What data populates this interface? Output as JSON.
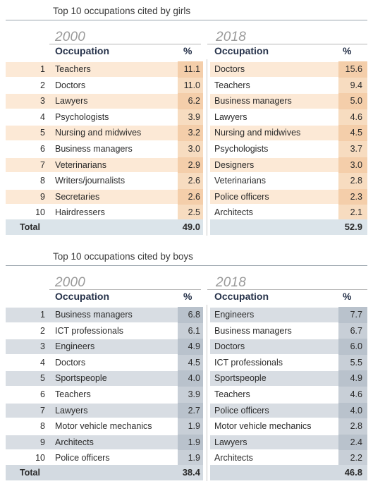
{
  "girls": {
    "title": "Top 10 occupations cited by girls",
    "left": {
      "year": "2000",
      "occupation_header": "Occupation",
      "pct_header": "%"
    },
    "right": {
      "year": "2018",
      "occupation_header": "Occupation",
      "pct_header": "%"
    },
    "rows": [
      {
        "rank": "1",
        "occ2000": "Teachers",
        "pct2000": "11.1",
        "occ2018": "Doctors",
        "pct2018": "15.6"
      },
      {
        "rank": "2",
        "occ2000": "Doctors",
        "pct2000": "11.0",
        "occ2018": "Teachers",
        "pct2018": "9.4"
      },
      {
        "rank": "3",
        "occ2000": "Lawyers",
        "pct2000": "6.2",
        "occ2018": "Business managers",
        "pct2018": "5.0"
      },
      {
        "rank": "4",
        "occ2000": "Psychologists",
        "pct2000": "3.9",
        "occ2018": "Lawyers",
        "pct2018": "4.6"
      },
      {
        "rank": "5",
        "occ2000": "Nursing and midwives",
        "pct2000": "3.2",
        "occ2018": "Nursing and midwives",
        "pct2018": "4.5"
      },
      {
        "rank": "6",
        "occ2000": "Business managers",
        "pct2000": "3.0",
        "occ2018": "Psychologists",
        "pct2018": "3.7"
      },
      {
        "rank": "7",
        "occ2000": "Veterinarians",
        "pct2000": "2.9",
        "occ2018": "Designers",
        "pct2018": "3.0"
      },
      {
        "rank": "8",
        "occ2000": "Writers/journalists",
        "pct2000": "2.6",
        "occ2018": "Veterinarians",
        "pct2018": "2.8"
      },
      {
        "rank": "9",
        "occ2000": "Secretaries",
        "pct2000": "2.6",
        "occ2018": "Police officers",
        "pct2018": "2.3"
      },
      {
        "rank": "10",
        "occ2000": "Hairdressers",
        "pct2000": "2.5",
        "occ2018": "Architects",
        "pct2018": "2.1"
      }
    ],
    "total": {
      "label": "Total",
      "pct2000": "49.0",
      "pct2018": "52.9"
    }
  },
  "boys": {
    "title": "Top 10 occupations cited by boys",
    "left": {
      "year": "2000",
      "occupation_header": "Occupation",
      "pct_header": "%"
    },
    "right": {
      "year": "2018",
      "occupation_header": "Occupation",
      "pct_header": "%"
    },
    "rows": [
      {
        "rank": "1",
        "occ2000": "Business managers",
        "pct2000": "6.8",
        "occ2018": "Engineers",
        "pct2018": "7.7"
      },
      {
        "rank": "2",
        "occ2000": "ICT professionals",
        "pct2000": "6.1",
        "occ2018": "Business managers",
        "pct2018": "6.7"
      },
      {
        "rank": "3",
        "occ2000": "Engineers",
        "pct2000": "4.9",
        "occ2018": "Doctors",
        "pct2018": "6.0"
      },
      {
        "rank": "4",
        "occ2000": "Doctors",
        "pct2000": "4.5",
        "occ2018": "ICT professionals",
        "pct2018": "5.5"
      },
      {
        "rank": "5",
        "occ2000": "Sportspeople",
        "pct2000": "4.0",
        "occ2018": "Sportspeople",
        "pct2018": "4.9"
      },
      {
        "rank": "6",
        "occ2000": "Teachers",
        "pct2000": "3.9",
        "occ2018": "Teachers",
        "pct2018": "4.6"
      },
      {
        "rank": "7",
        "occ2000": "Lawyers",
        "pct2000": "2.7",
        "occ2018": "Police officers",
        "pct2018": "4.0"
      },
      {
        "rank": "8",
        "occ2000": "Motor vehicle mechanics",
        "pct2000": "1.9",
        "occ2018": "Motor vehicle mechanics",
        "pct2018": "2.8"
      },
      {
        "rank": "9",
        "occ2000": "Architects",
        "pct2000": "1.9",
        "occ2018": "Lawyers",
        "pct2018": "2.4"
      },
      {
        "rank": "10",
        "occ2000": "Police officers",
        "pct2000": "1.9",
        "occ2018": "Architects",
        "pct2018": "2.2"
      }
    ],
    "total": {
      "label": "Total",
      "pct2000": "38.4",
      "pct2018": "46.8"
    }
  }
}
